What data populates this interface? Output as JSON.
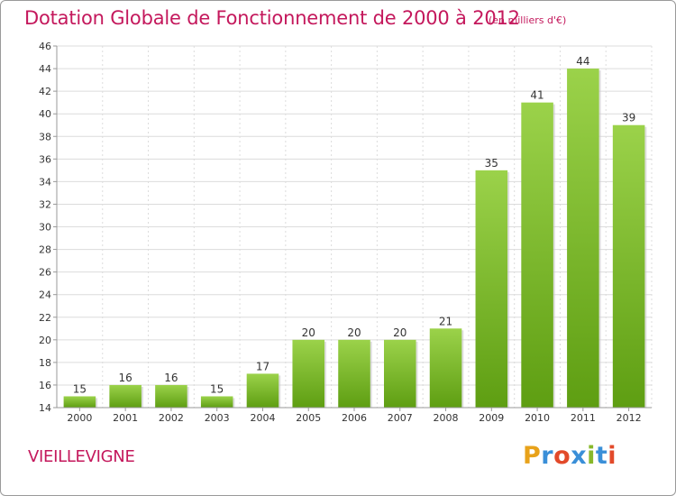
{
  "header": {
    "title": "Dotation Globale de Fonctionnement de 2000 à 2012",
    "unit": "(en milliers d'€)"
  },
  "footer": {
    "commune": "VIEILLEVIGNE",
    "logo_letters": [
      "P",
      "r",
      "o",
      "x",
      "i",
      "t",
      "i"
    ],
    "logo_colors": [
      "#e8a21a",
      "#3a8fd8",
      "#e24a2a",
      "#3a8fd8",
      "#88b82a",
      "#3a8fd8",
      "#e24a2a"
    ]
  },
  "colors": {
    "title": "#c4185c",
    "bar_light": "#9bd24a",
    "bar_dark": "#5e9e12",
    "grid": "#dcdcdc",
    "axis": "#999999"
  },
  "chart_data": {
    "type": "bar",
    "title": "Dotation Globale de Fonctionnement de 2000 à 2012",
    "subtitle": "(en milliers d'€)",
    "categories": [
      "2000",
      "2001",
      "2002",
      "2003",
      "2004",
      "2005",
      "2006",
      "2007",
      "2008",
      "2009",
      "2010",
      "2011",
      "2012"
    ],
    "values": [
      15,
      16,
      16,
      15,
      17,
      20,
      20,
      20,
      21,
      35,
      41,
      44,
      39
    ],
    "data_labels": [
      "15",
      "16",
      "16",
      "15",
      "17",
      "20",
      "20",
      "20",
      "21",
      "35",
      "41",
      "44",
      "39"
    ],
    "yticks": [
      14,
      16,
      18,
      20,
      22,
      24,
      26,
      28,
      30,
      32,
      34,
      36,
      38,
      40,
      42,
      44,
      46
    ],
    "ytick_labels": [
      "14",
      "16",
      "18",
      "20",
      "22",
      "24",
      "26",
      "28",
      "30",
      "32",
      "34",
      "36",
      "38",
      "40",
      "42",
      "44",
      "46"
    ],
    "ylim": [
      14,
      46
    ],
    "xlabel": "",
    "ylabel": "",
    "grid": true,
    "legend": "none"
  }
}
